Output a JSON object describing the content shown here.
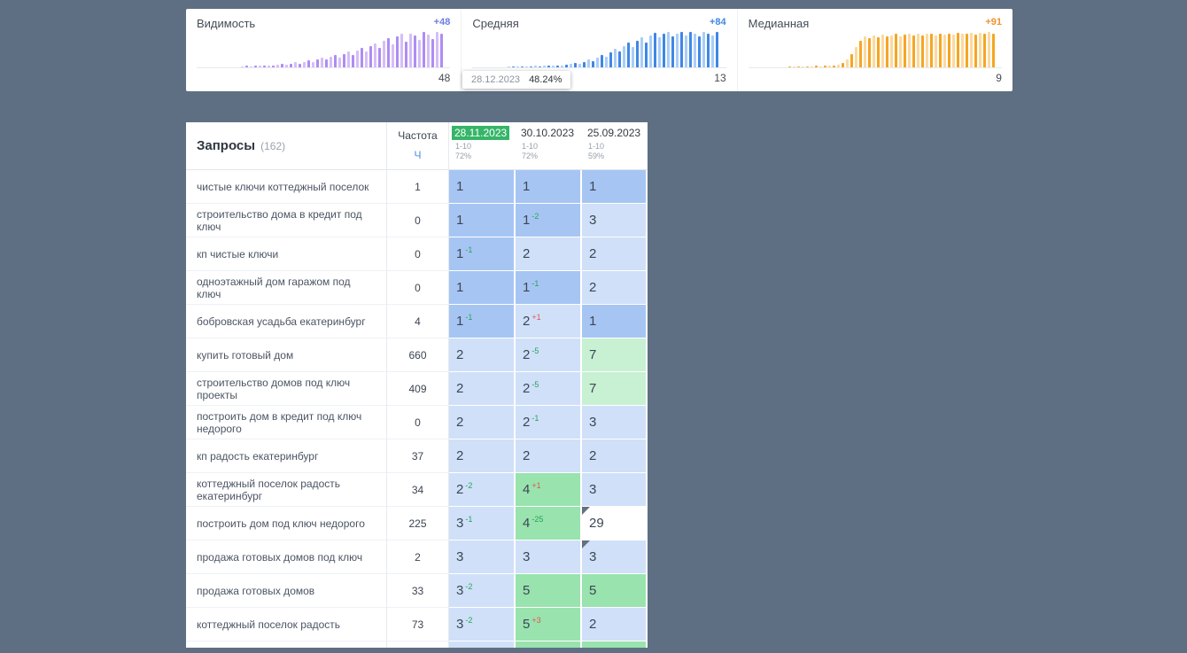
{
  "page": {
    "background": "#5e6f83"
  },
  "colors": {
    "pos1": "#a7c5f3",
    "pos2_3": "#d0e0f9",
    "pos4_5": "#99e3ae",
    "pos6_10": "#c8f0d2",
    "pos_other": "#ffffff",
    "delta_up": "#27a35a",
    "delta_down": "#e25555",
    "selected_date_bg": "#35b567"
  },
  "cards": [
    {
      "key": "visibility",
      "title": "Видимость",
      "badge": "+48",
      "badge_color": "#6d7ce6",
      "value": "48",
      "color_light": "#d4bef8",
      "color_dark": "#b08cf2",
      "bars": [
        0,
        0,
        0,
        0,
        0,
        0,
        0,
        0,
        0,
        0,
        3,
        4,
        3,
        4,
        5,
        4,
        6,
        5,
        7,
        9,
        8,
        11,
        14,
        11,
        16,
        20,
        16,
        23,
        27,
        22,
        30,
        35,
        28,
        38,
        44,
        36,
        48,
        55,
        44,
        60,
        68,
        54,
        74,
        82,
        64,
        88,
        94,
        72,
        96,
        90,
        78,
        100,
        92,
        80,
        99,
        96
      ]
    },
    {
      "key": "average",
      "title": "Средняя",
      "badge": "+84",
      "badge_color": "#3f87e5",
      "value": "13",
      "color_light": "#aacdf7",
      "color_dark": "#3f87e5",
      "bars": [
        0,
        0,
        0,
        0,
        0,
        0,
        0,
        0,
        2,
        2,
        3,
        2,
        3,
        3,
        4,
        3,
        4,
        5,
        4,
        6,
        5,
        8,
        10,
        13,
        11,
        16,
        22,
        18,
        28,
        36,
        30,
        42,
        52,
        45,
        60,
        70,
        58,
        76,
        86,
        70,
        90,
        98,
        84,
        94,
        100,
        88,
        96,
        100,
        90,
        100,
        95,
        88,
        100,
        94,
        91,
        100
      ]
    },
    {
      "key": "median",
      "title": "Медианная",
      "badge": "+91",
      "badge_color": "#f0922e",
      "value": "9",
      "color_light": "#fbd9a2",
      "color_dark": "#f5a623",
      "bars": [
        0,
        0,
        0,
        0,
        0,
        0,
        0,
        0,
        0,
        2,
        2,
        3,
        2,
        3,
        3,
        4,
        3,
        5,
        4,
        6,
        8,
        12,
        22,
        38,
        58,
        76,
        88,
        82,
        90,
        86,
        92,
        88,
        91,
        94,
        88,
        93,
        95,
        90,
        94,
        90,
        94,
        96,
        91,
        95,
        92,
        96,
        93,
        97,
        94,
        96,
        98,
        93,
        97,
        95,
        100,
        96
      ]
    }
  ],
  "tooltip": {
    "date": "28.12.2023",
    "value": "48.24%"
  },
  "table": {
    "queries_label": "Запросы",
    "queries_count": "(162)",
    "freq_label": "Частота",
    "freq_type": "Ч",
    "columns": [
      {
        "date": "28.11.2023",
        "range": "1-10",
        "percent": "72%",
        "selected": true
      },
      {
        "date": "30.10.2023",
        "range": "1-10",
        "percent": "72%",
        "selected": false
      },
      {
        "date": "25.09.2023",
        "range": "1-10",
        "percent": "59%",
        "selected": false
      }
    ],
    "rows": [
      {
        "query": "чистые ключи коттеджный поселок",
        "freq": "1",
        "cells": [
          {
            "pos": "1"
          },
          {
            "pos": "1"
          },
          {
            "pos": "1"
          }
        ]
      },
      {
        "query": "строительство дома в кредит под ключ",
        "freq": "0",
        "cells": [
          {
            "pos": "1"
          },
          {
            "pos": "1",
            "delta": "-2",
            "dir": "up"
          },
          {
            "pos": "3"
          }
        ]
      },
      {
        "query": "кп чистые ключи",
        "freq": "0",
        "cells": [
          {
            "pos": "1",
            "delta": "-1",
            "dir": "up"
          },
          {
            "pos": "2"
          },
          {
            "pos": "2"
          }
        ]
      },
      {
        "query": "одноэтажный дом гаражом под ключ",
        "freq": "0",
        "cells": [
          {
            "pos": "1"
          },
          {
            "pos": "1",
            "delta": "-1",
            "dir": "up"
          },
          {
            "pos": "2"
          }
        ]
      },
      {
        "query": "бобровская усадьба екатеринбург",
        "freq": "4",
        "cells": [
          {
            "pos": "1",
            "delta": "-1",
            "dir": "up"
          },
          {
            "pos": "2",
            "delta": "+1",
            "dir": "down"
          },
          {
            "pos": "1"
          }
        ]
      },
      {
        "query": "купить готовый дом",
        "freq": "660",
        "cells": [
          {
            "pos": "2"
          },
          {
            "pos": "2",
            "delta": "-5",
            "dir": "up"
          },
          {
            "pos": "7"
          }
        ]
      },
      {
        "query": "строительство домов под ключ проекты",
        "freq": "409",
        "cells": [
          {
            "pos": "2"
          },
          {
            "pos": "2",
            "delta": "-5",
            "dir": "up"
          },
          {
            "pos": "7"
          }
        ]
      },
      {
        "query": "построить дом в кредит под ключ недорого",
        "freq": "0",
        "cells": [
          {
            "pos": "2"
          },
          {
            "pos": "2",
            "delta": "-1",
            "dir": "up"
          },
          {
            "pos": "3"
          }
        ]
      },
      {
        "query": "кп радость екатеринбург",
        "freq": "37",
        "cells": [
          {
            "pos": "2"
          },
          {
            "pos": "2"
          },
          {
            "pos": "2"
          }
        ]
      },
      {
        "query": "коттеджный поселок радость екатеринбург",
        "freq": "34",
        "cells": [
          {
            "pos": "2",
            "delta": "-2",
            "dir": "up"
          },
          {
            "pos": "4",
            "delta": "+1",
            "dir": "down"
          },
          {
            "pos": "3"
          }
        ]
      },
      {
        "query": "построить дом под ключ недорого",
        "freq": "225",
        "cells": [
          {
            "pos": "3",
            "delta": "-1",
            "dir": "up"
          },
          {
            "pos": "4",
            "delta": "-25",
            "dir": "up"
          },
          {
            "pos": "29",
            "flag": true
          }
        ]
      },
      {
        "query": "продажа готовых домов под ключ",
        "freq": "2",
        "cells": [
          {
            "pos": "3"
          },
          {
            "pos": "3"
          },
          {
            "pos": "3",
            "flag": true
          }
        ]
      },
      {
        "query": "продажа готовых домов",
        "freq": "33",
        "cells": [
          {
            "pos": "3",
            "delta": "-2",
            "dir": "up"
          },
          {
            "pos": "5"
          },
          {
            "pos": "5"
          }
        ]
      },
      {
        "query": "коттеджный поселок радость",
        "freq": "73",
        "cells": [
          {
            "pos": "3",
            "delta": "-2",
            "dir": "up"
          },
          {
            "pos": "5",
            "delta": "+3",
            "dir": "down"
          },
          {
            "pos": "2"
          }
        ]
      }
    ],
    "partial_row": {
      "cells": [
        "pos2_3",
        "pos4_5",
        "pos4_5"
      ]
    }
  }
}
